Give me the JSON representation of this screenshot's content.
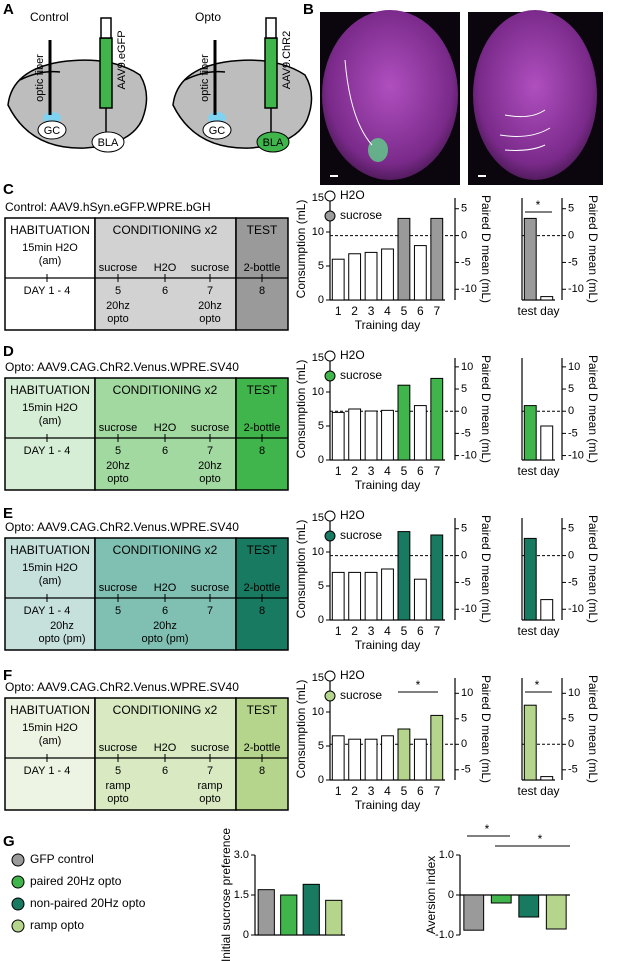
{
  "panel_labels": [
    "A",
    "B",
    "C",
    "D",
    "E",
    "F",
    "G"
  ],
  "schematic": [
    {
      "title": "Control",
      "fiber": "optic fiber",
      "virus": "AAV9.eGFP",
      "regions": [
        "GC",
        "BLA"
      ]
    },
    {
      "title": "Opto",
      "fiber": "optic fiber",
      "virus": "AAV9.ChR2",
      "regions": [
        "GC",
        "BLA"
      ]
    }
  ],
  "timelines": [
    {
      "title": "Control: AAV9.hSyn.eGFP.WPRE.bGH",
      "phases": [
        "HABITUATION",
        "CONDITIONING x2",
        "TEST"
      ],
      "hab_text": [
        "15min H2O",
        "(am)"
      ],
      "hab_day": "DAY 1 - 4",
      "solutions": [
        "sucrose",
        "H2O",
        "sucrose",
        "2-bottle"
      ],
      "days": [
        "5",
        "6",
        "7",
        "8"
      ],
      "cond_notes": [
        [
          "20hz",
          "opto"
        ],
        null,
        [
          "20hz",
          "opto"
        ]
      ],
      "colors": [
        "#ffffff",
        "#d2d2d2",
        "#9a9a9a"
      ]
    },
    {
      "title": "Opto: AAV9.CAG.ChR2.Venus.WPRE.SV40",
      "phases": [
        "HABITUATION",
        "CONDITIONING x2",
        "TEST"
      ],
      "hab_text": [
        "15min H2O",
        "(am)"
      ],
      "hab_day": "DAY 1 - 4",
      "solutions": [
        "sucrose",
        "H2O",
        "sucrose",
        "2-bottle"
      ],
      "days": [
        "5",
        "6",
        "7",
        "8"
      ],
      "cond_notes": [
        [
          "20hz",
          "opto"
        ],
        null,
        [
          "20hz",
          "opto"
        ]
      ],
      "colors": [
        "#d7eed6",
        "#a2d9a0",
        "#3fb54b"
      ]
    },
    {
      "title": "Opto: AAV9.CAG.ChR2.Venus.WPRE.SV40",
      "phases": [
        "HABITUATION",
        "CONDITIONING x2",
        "TEST"
      ],
      "hab_text": [
        "15min H2O",
        "(am)"
      ],
      "hab_day": "DAY 1 - 4",
      "hab_notes": [
        "20hz",
        "opto (pm)"
      ],
      "solutions": [
        "sucrose",
        "H2O",
        "sucrose",
        "2-bottle"
      ],
      "days": [
        "5",
        "6",
        "7",
        "8"
      ],
      "cond_notes": [
        null,
        [
          "20hz",
          "opto (pm)"
        ],
        null
      ],
      "colors": [
        "#c6e1dc",
        "#80c0b2",
        "#187a60"
      ]
    },
    {
      "title": "Opto: AAV9.CAG.ChR2.Venus.WPRE.SV40",
      "phases": [
        "HABITUATION",
        "CONDITIONING x2",
        "TEST"
      ],
      "hab_text": [
        "15min H2O",
        "(am)"
      ],
      "hab_day": "DAY 1 - 4",
      "solutions": [
        "sucrose",
        "H2O",
        "sucrose",
        "2-bottle"
      ],
      "days": [
        "5",
        "6",
        "7",
        "8"
      ],
      "cond_notes": [
        [
          "ramp",
          "opto"
        ],
        null,
        [
          "ramp",
          "opto"
        ]
      ],
      "colors": [
        "#eef4e3",
        "#d9e9c2",
        "#b6d58c"
      ]
    }
  ],
  "chart_data": [
    {
      "type": "bar",
      "ylabel": "Consumption (mL)",
      "xlabel": "Training day",
      "y2label": "Paired D mean (mL)",
      "categories": [
        "1",
        "2",
        "3",
        "4",
        "5",
        "6",
        "7"
      ],
      "series": [
        {
          "name": "H2O",
          "color": "#ffffff",
          "values": [
            6,
            6.8,
            7,
            7.5,
            null,
            8,
            null
          ]
        },
        {
          "name": "sucrose",
          "color": "#9a9a9a",
          "values": [
            null,
            null,
            null,
            null,
            12,
            null,
            12
          ]
        }
      ],
      "ylim": [
        0,
        15
      ],
      "yticks": [
        0,
        5,
        10,
        15
      ],
      "y2lim": [
        -12,
        7
      ],
      "y2ticks": [
        5,
        0,
        -5,
        -10
      ]
    },
    {
      "type": "bar",
      "xlabel": "test day",
      "y2label": "Paired D mean (mL)",
      "categories": [
        null,
        null
      ],
      "series": [
        {
          "color": "#9a9a9a",
          "values": [
            12,
            null
          ]
        },
        {
          "color": "#ffffff",
          "values": [
            null,
            0.5
          ]
        }
      ],
      "ylim": [
        0,
        15
      ],
      "y2lim": [
        -12,
        7
      ],
      "y2ticks": [
        5,
        0,
        -5,
        -10
      ],
      "annotations": [
        "*"
      ]
    },
    {
      "type": "bar",
      "ylabel": "Consumption (mL)",
      "xlabel": "Training day",
      "y2label": "Paired D mean (mL)",
      "categories": [
        "1",
        "2",
        "3",
        "4",
        "5",
        "6",
        "7"
      ],
      "series": [
        {
          "name": "H2O",
          "color": "#ffffff",
          "values": [
            7,
            7.5,
            7.2,
            7.3,
            null,
            8,
            null
          ]
        },
        {
          "name": "sucrose",
          "color": "#3fb54b",
          "values": [
            null,
            null,
            null,
            null,
            11,
            null,
            12
          ]
        }
      ],
      "ylim": [
        0,
        15
      ],
      "yticks": [
        0,
        5,
        10,
        15
      ],
      "y2lim": [
        -11,
        12
      ],
      "y2ticks": [
        10,
        5,
        0,
        -5,
        -10
      ]
    },
    {
      "type": "bar",
      "xlabel": "test day",
      "y2label": "Paired D mean (mL)",
      "categories": [
        null,
        null
      ],
      "series": [
        {
          "color": "#3fb54b",
          "values": [
            8,
            null
          ]
        },
        {
          "color": "#ffffff",
          "values": [
            null,
            5
          ]
        }
      ],
      "ylim": [
        0,
        15
      ],
      "y2lim": [
        -11,
        12
      ],
      "y2ticks": [
        10,
        5,
        0,
        -5,
        -10
      ]
    },
    {
      "type": "bar",
      "ylabel": "Consumption (mL)",
      "xlabel": "Training day",
      "y2label": "Paired D mean (mL)",
      "categories": [
        "1",
        "2",
        "3",
        "4",
        "5",
        "6",
        "7"
      ],
      "series": [
        {
          "name": "H2O",
          "color": "#ffffff",
          "values": [
            7,
            7,
            7,
            7.5,
            null,
            6,
            null
          ]
        },
        {
          "name": "sucrose",
          "color": "#187a60",
          "values": [
            null,
            null,
            null,
            null,
            13,
            null,
            12.5
          ]
        }
      ],
      "ylim": [
        0,
        15
      ],
      "yticks": [
        0,
        5,
        10,
        15
      ],
      "y2lim": [
        -12,
        7
      ],
      "y2ticks": [
        5,
        0,
        -5,
        -10
      ]
    },
    {
      "type": "bar",
      "xlabel": "test day",
      "y2label": "Paired D mean (mL)",
      "categories": [
        null,
        null
      ],
      "series": [
        {
          "color": "#187a60",
          "values": [
            12,
            null
          ]
        },
        {
          "color": "#ffffff",
          "values": [
            null,
            3
          ]
        }
      ],
      "ylim": [
        0,
        15
      ],
      "y2lim": [
        -12,
        7
      ],
      "y2ticks": [
        5,
        0,
        -5,
        -10
      ]
    },
    {
      "type": "bar",
      "ylabel": "Consumption (mL)",
      "xlabel": "Training day",
      "y2label": "Paired D mean (mL)",
      "categories": [
        "1",
        "2",
        "3",
        "4",
        "5",
        "6",
        "7"
      ],
      "series": [
        {
          "name": "H2O",
          "color": "#ffffff",
          "values": [
            6.5,
            6,
            6,
            6.5,
            null,
            6,
            null
          ]
        },
        {
          "name": "sucrose",
          "color": "#b6d58c",
          "values": [
            null,
            null,
            null,
            null,
            7.5,
            null,
            9.5
          ]
        }
      ],
      "ylim": [
        0,
        15
      ],
      "yticks": [
        0,
        5,
        10,
        15
      ],
      "y2lim": [
        -7,
        13
      ],
      "y2ticks": [
        10,
        5,
        0,
        -5
      ],
      "annotations": [
        "*"
      ]
    },
    {
      "type": "bar",
      "xlabel": "test day",
      "y2label": "Paired D mean (mL)",
      "categories": [
        null,
        null
      ],
      "series": [
        {
          "color": "#b6d58c",
          "values": [
            11,
            null
          ]
        },
        {
          "color": "#ffffff",
          "values": [
            null,
            0.5
          ]
        }
      ],
      "ylim": [
        0,
        15
      ],
      "y2lim": [
        -7,
        13
      ],
      "y2ticks": [
        10,
        5,
        0,
        -5
      ],
      "annotations": [
        "*"
      ]
    },
    {
      "type": "bar",
      "ylabel": "Initial sucrose preference",
      "categories": [
        null,
        null,
        null,
        null
      ],
      "series": [
        {
          "name": "GFP control",
          "color": "#9a9a9a",
          "values": [
            1.7,
            null,
            null,
            null
          ]
        },
        {
          "name": "paired 20Hz opto",
          "color": "#3fb54b",
          "values": [
            null,
            1.5,
            null,
            null
          ]
        },
        {
          "name": "non-paired 20Hz opto",
          "color": "#187a60",
          "values": [
            null,
            null,
            1.9,
            null
          ]
        },
        {
          "name": "ramp opto",
          "color": "#b6d58c",
          "values": [
            null,
            null,
            null,
            1.3
          ]
        }
      ],
      "ylim": [
        0,
        3
      ],
      "yticks": [
        0,
        1.5,
        {
          "value": 3,
          "label": "3.0"
        }
      ]
    },
    {
      "type": "bar",
      "ylabel": "Aversion index",
      "categories": [
        null,
        null,
        null,
        null
      ],
      "series": [
        {
          "color": "#9a9a9a",
          "values": [
            -0.88,
            null,
            null,
            null
          ]
        },
        {
          "color": "#3fb54b",
          "values": [
            null,
            -0.2,
            null,
            null
          ]
        },
        {
          "color": "#187a60",
          "values": [
            null,
            null,
            -0.55,
            null
          ]
        },
        {
          "color": "#b6d58c",
          "values": [
            null,
            null,
            null,
            -0.85
          ]
        }
      ],
      "ylim": [
        -1,
        1
      ],
      "yticks": [
        {
          "value": -1,
          "label": "-1.0"
        },
        0,
        {
          "value": 1,
          "label": "1.0"
        }
      ],
      "annotations": [
        "*",
        "*"
      ]
    }
  ]
}
